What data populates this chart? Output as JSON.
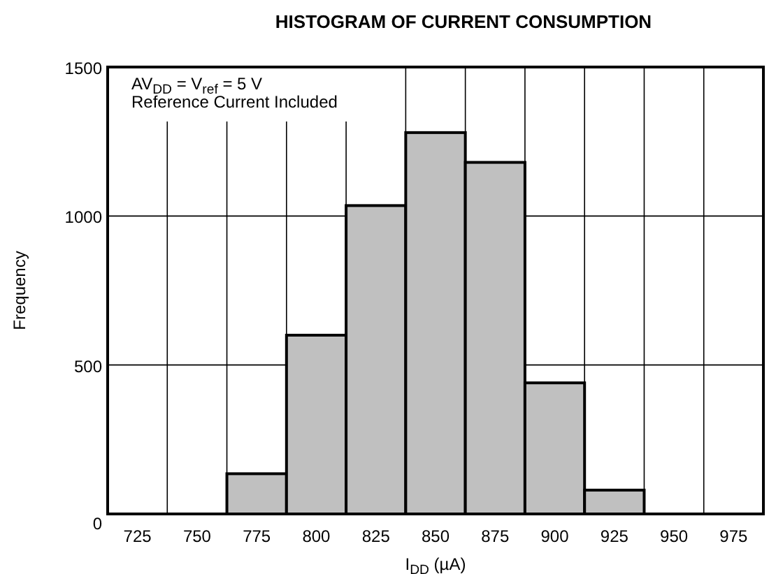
{
  "chart_data": {
    "type": "histogram",
    "title": "HISTOGRAM OF CURRENT CONSUMPTION",
    "xlabel": "I$_{DD}$ (µA)",
    "ylabel": "Frequency",
    "bins": [
      712.5,
      737.5,
      762.5,
      787.5,
      812.5,
      837.5,
      862.5,
      887.5,
      912.5,
      937.5,
      962.5,
      987.5
    ],
    "values": [
      0,
      0,
      135,
      600,
      1035,
      1280,
      1180,
      440,
      80,
      0,
      0
    ],
    "color": "#c0c0c0",
    "xlim": [
      712.5,
      987.5
    ],
    "xticks": [
      725,
      750,
      775,
      800,
      825,
      850,
      875,
      900,
      925,
      950,
      975
    ],
    "ylim": [
      0,
      1500
    ],
    "yticks": [
      0,
      500,
      1000,
      1500
    ],
    "grid": true,
    "annotations": [
      "AV$_{DD}$ = V$_{ref}$ = 5 V",
      "Reference Current Included"
    ]
  }
}
